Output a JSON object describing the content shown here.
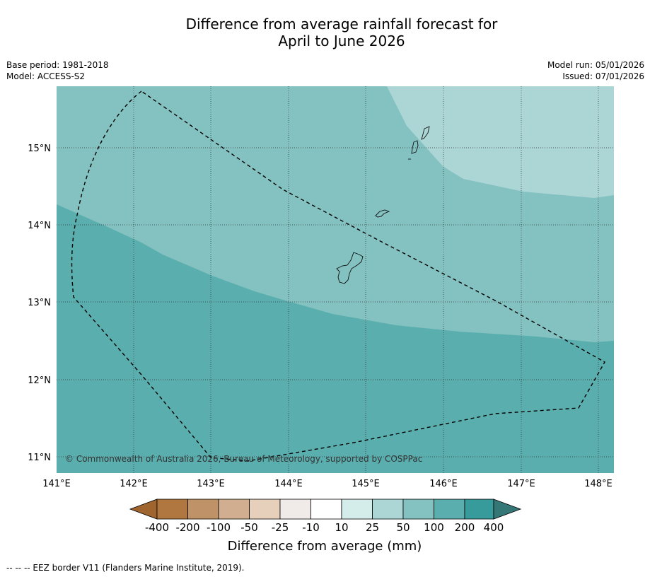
{
  "header": {
    "title_line1": "Difference from average rainfall forecast for",
    "title_line2": "April to June 2026",
    "base_period": "Base period: 1981-2018",
    "model": "Model: ACCESS-S2",
    "model_run": "Model run: 05/01/2026",
    "issued": "Issued: 07/01/2026"
  },
  "map": {
    "credit": "© Commonwealth of Australia 2026, Bureau of Meteorology, supported by COSPPac",
    "lon_ticks": [
      "141°E",
      "142°E",
      "143°E",
      "144°E",
      "145°E",
      "146°E",
      "147°E",
      "148°E"
    ],
    "lat_ticks": [
      "15°N",
      "14°N",
      "13°N",
      "12°N",
      "11°N"
    ],
    "zones": [
      {
        "name": "25 to 50 mm",
        "color": "#acd6d6"
      },
      {
        "name": "50 to 100 mm",
        "color": "#84c1c1"
      },
      {
        "name": "100 to 200 mm",
        "color": "#5baeae"
      }
    ]
  },
  "colorbar": {
    "title": "Difference from average (mm)",
    "labels": [
      "-400",
      "-200",
      "-100",
      "-50",
      "-25",
      "-10",
      "10",
      "25",
      "50",
      "100",
      "200",
      "400"
    ],
    "colors": [
      "#a0642e",
      "#b07840",
      "#c09268",
      "#d2ae90",
      "#e6d0bc",
      "#f0ebe8",
      "#ffffff",
      "#d4ecea",
      "#acd6d6",
      "#84c1c1",
      "#5baeae",
      "#379b9b",
      "#357777"
    ]
  },
  "footnote": "--  --  -- EEZ border V11 (Flanders Marine Institute, 2019)."
}
